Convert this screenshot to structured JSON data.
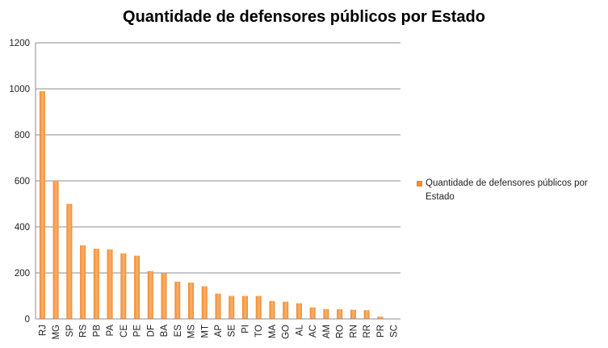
{
  "chart_data": {
    "type": "bar",
    "title": "Quantidade de defensores públicos por Estado",
    "xlabel": "",
    "ylabel": "",
    "ylim": [
      0,
      1200
    ],
    "yticks": [
      0,
      200,
      400,
      600,
      800,
      1000,
      1200
    ],
    "grid": true,
    "legend_position": "right",
    "bar_color": "#F28A2E",
    "bar_color_light": "#F9B26A",
    "categories": [
      "RJ",
      "MG",
      "SP",
      "RS",
      "PB",
      "PA",
      "CE",
      "PE",
      "DF",
      "BA",
      "ES",
      "MS",
      "MT",
      "AP",
      "SE",
      "PI",
      "TO",
      "MA",
      "GO",
      "AL",
      "AC",
      "AM",
      "RO",
      "RN",
      "RR",
      "PR",
      "SC"
    ],
    "series": [
      {
        "name": "Quantidade de defensores públicos por Estado",
        "values": [
          990,
          600,
          500,
          320,
          305,
          302,
          285,
          275,
          208,
          200,
          162,
          158,
          142,
          110,
          100,
          100,
          100,
          78,
          75,
          68,
          50,
          43,
          42,
          40,
          38,
          10,
          0
        ]
      }
    ]
  }
}
